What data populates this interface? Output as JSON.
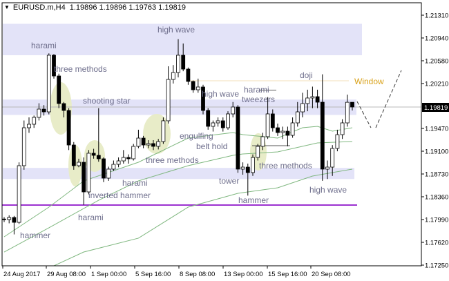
{
  "header": {
    "symbol": "EURUSD.m,H4",
    "values": "1.19896 1.19896 1.19763 1.19819",
    "menu_icon": "triangle-down-icon"
  },
  "chart_data": {
    "type": "candlestick",
    "symbol": "EURUSD.m",
    "timeframe": "H4",
    "ylim": [
      1.1725,
      1.2165
    ],
    "y_ticks": [
      "1.21310",
      "1.20940",
      "1.20580",
      "1.20210",
      "1.19470",
      "1.19100",
      "1.18730",
      "1.18360",
      "1.17990",
      "1.17620",
      "1.17250"
    ],
    "current_price": "1.19819",
    "x_ticks": [
      "24 Aug 2017",
      "29 Aug 08:00",
      "1 Sep 00:00",
      "5 Sep 16:00",
      "8 Sep 08:00",
      "13 Sep 00:00",
      "15 Sep 16:00",
      "20 Sep 08:00"
    ],
    "candles_ohlc": [
      [
        1.18,
        1.1803,
        1.1795,
        1.17991
      ],
      [
        1.17991,
        1.1806,
        1.1793,
        1.18025
      ],
      [
        1.18025,
        1.1805,
        1.1775,
        1.17946
      ],
      [
        1.17946,
        1.1892,
        1.1792,
        1.18866
      ],
      [
        1.18866,
        1.196,
        1.188,
        1.19482
      ],
      [
        1.19482,
        1.1965,
        1.194,
        1.19539
      ],
      [
        1.19539,
        1.1968,
        1.1948,
        1.19651
      ],
      [
        1.19651,
        1.1988,
        1.196,
        1.19785
      ],
      [
        1.19785,
        1.1985,
        1.1968,
        1.1974
      ],
      [
        1.1974,
        1.2069,
        1.197,
        1.2066
      ],
      [
        1.2066,
        1.2068,
        1.2028,
        1.20323
      ],
      [
        1.20323,
        1.2036,
        1.198,
        1.19875
      ],
      [
        1.19875,
        1.199,
        1.1965,
        1.19763
      ],
      [
        1.19763,
        1.198,
        1.1912,
        1.19202
      ],
      [
        1.19202,
        1.1925,
        1.188,
        1.18866
      ],
      [
        1.18866,
        1.1898,
        1.1884,
        1.18922
      ],
      [
        1.18922,
        1.19,
        1.1823,
        1.1844
      ],
      [
        1.1844,
        1.1912,
        1.184,
        1.19068
      ],
      [
        1.19068,
        1.1914,
        1.1898,
        1.19034
      ],
      [
        1.19034,
        1.198,
        1.1893,
        1.18978
      ],
      [
        1.18978,
        1.19,
        1.186,
        1.18664
      ],
      [
        1.18664,
        1.1885,
        1.1862,
        1.1881
      ],
      [
        1.1881,
        1.1895,
        1.1878,
        1.18888
      ],
      [
        1.18888,
        1.19,
        1.1884,
        1.18944
      ],
      [
        1.18944,
        1.1912,
        1.189,
        1.19
      ],
      [
        1.19,
        1.1905,
        1.189,
        1.18978
      ],
      [
        1.18978,
        1.1922,
        1.1895,
        1.1918
      ],
      [
        1.1918,
        1.1945,
        1.1915,
        1.19314
      ],
      [
        1.19314,
        1.1935,
        1.1915,
        1.19202
      ],
      [
        1.19202,
        1.1928,
        1.1915,
        1.19225
      ],
      [
        1.19225,
        1.1928,
        1.1912,
        1.1918
      ],
      [
        1.1918,
        1.193,
        1.1913,
        1.19258
      ],
      [
        1.19258,
        1.1965,
        1.1922,
        1.19595
      ],
      [
        1.19595,
        1.2048,
        1.1955,
        1.20267
      ],
      [
        1.20267,
        1.205,
        1.202,
        1.20379
      ],
      [
        1.20379,
        1.2092,
        1.203,
        1.2066
      ],
      [
        1.2066,
        1.2085,
        1.204,
        1.20435
      ],
      [
        1.20435,
        1.2046,
        1.2018,
        1.20234
      ],
      [
        1.20234,
        1.2025,
        1.2005,
        1.20099
      ],
      [
        1.20099,
        1.2028,
        1.2005,
        1.20144
      ],
      [
        1.20144,
        1.2018,
        1.197,
        1.19763
      ],
      [
        1.19763,
        1.198,
        1.1945,
        1.19505
      ],
      [
        1.19505,
        1.196,
        1.1942,
        1.19561
      ],
      [
        1.19561,
        1.1965,
        1.195,
        1.19595
      ],
      [
        1.19595,
        1.1965,
        1.1942,
        1.19482
      ],
      [
        1.19482,
        1.1975,
        1.1945,
        1.19707
      ],
      [
        1.19707,
        1.199,
        1.1965,
        1.19819
      ],
      [
        1.19819,
        1.1985,
        1.1875,
        1.1881
      ],
      [
        1.1881,
        1.1892,
        1.1872,
        1.18843
      ],
      [
        1.18843,
        1.189,
        1.1838,
        1.18754
      ],
      [
        1.18754,
        1.1905,
        1.187,
        1.19
      ],
      [
        1.19,
        1.1922,
        1.1895,
        1.1918
      ],
      [
        1.1918,
        1.194,
        1.1912,
        1.19337
      ],
      [
        1.19337,
        1.1998,
        1.193,
        1.19707
      ],
      [
        1.19707,
        1.1978,
        1.1942,
        1.19482
      ],
      [
        1.19482,
        1.1955,
        1.1935,
        1.19404
      ],
      [
        1.19404,
        1.195,
        1.193,
        1.19426
      ],
      [
        1.19426,
        1.195,
        1.1918,
        1.19359
      ],
      [
        1.19359,
        1.1965,
        1.1932,
        1.19561
      ],
      [
        1.19561,
        1.199,
        1.195,
        1.1974
      ],
      [
        1.1974,
        1.2005,
        1.1965,
        1.19875
      ],
      [
        1.19875,
        1.201,
        1.1975,
        1.19965
      ],
      [
        1.19965,
        1.2015,
        1.198,
        1.19987
      ],
      [
        1.19987,
        1.201,
        1.198,
        1.19897
      ],
      [
        1.19897,
        1.2035,
        1.1862,
        1.1881
      ],
      [
        1.1881,
        1.1895,
        1.1865,
        1.18843
      ],
      [
        1.18843,
        1.192,
        1.187,
        1.19146
      ],
      [
        1.19146,
        1.1945,
        1.191,
        1.1937
      ],
      [
        1.1937,
        1.1962,
        1.193,
        1.19561
      ],
      [
        1.19561,
        1.2002,
        1.195,
        1.19896
      ],
      [
        1.19896,
        1.19896,
        1.19763,
        1.19819
      ]
    ],
    "moving_averages": [
      {
        "color": "#7fb77f",
        "points": [
          [
            0,
            1.17711
          ],
          [
            9,
            1.18193
          ],
          [
            16,
            1.18619
          ],
          [
            27,
            1.18922
          ],
          [
            37,
            1.19314
          ],
          [
            46,
            1.19404
          ],
          [
            48,
            1.1937
          ],
          [
            55,
            1.19314
          ],
          [
            60,
            1.19482
          ],
          [
            63,
            1.19505
          ],
          [
            66,
            1.19426
          ],
          [
            70,
            1.19482
          ]
        ]
      },
      {
        "color": "#7fb77f",
        "points": [
          [
            0,
            1.17464
          ],
          [
            9,
            1.17857
          ],
          [
            19,
            1.18305
          ],
          [
            27,
            1.18619
          ],
          [
            37,
            1.18866
          ],
          [
            46,
            1.19034
          ],
          [
            48,
            1.19056
          ],
          [
            55,
            1.1909
          ],
          [
            63,
            1.19236
          ],
          [
            70,
            1.19258
          ]
        ]
      },
      {
        "color": "#7fb77f",
        "points": [
          [
            10,
            1.1724
          ],
          [
            16,
            1.17464
          ],
          [
            27,
            1.17689
          ],
          [
            37,
            1.18193
          ],
          [
            47,
            1.18417
          ],
          [
            55,
            1.18507
          ],
          [
            62,
            1.18698
          ],
          [
            70,
            1.1881
          ]
        ]
      }
    ],
    "zones": [
      {
        "from": 1.2066,
        "to": 1.2117,
        "color": "#e3e3f8"
      },
      {
        "from": 1.1969,
        "to": 1.1994,
        "color": "#e3e3f8"
      },
      {
        "from": 1.1865,
        "to": 1.1883,
        "color": "#e3e3f8"
      }
    ],
    "support_line": {
      "price": 1.18227,
      "color": "#9b30d0"
    },
    "window_line": {
      "price": 1.20245,
      "color": "#f3dfb8"
    },
    "tweezers_lines": [
      1.20093,
      1.19191
    ],
    "annotations": [
      "harami",
      "three methods",
      "shooting star",
      "high wave",
      "high wave",
      "harami",
      "tweezers",
      "doji",
      "engulfing",
      "belt hold",
      "three methods",
      "three methods",
      "harami",
      "tower",
      "hammer",
      "high wave",
      "inverted hammer",
      "harami",
      "hammer"
    ],
    "window_label": "Window",
    "colors": {
      "bull": "#ffffff",
      "bear": "#000000",
      "annotation": "#6e6e8c",
      "window": "#d9a21b",
      "highlight": "#e8ecc8"
    }
  }
}
